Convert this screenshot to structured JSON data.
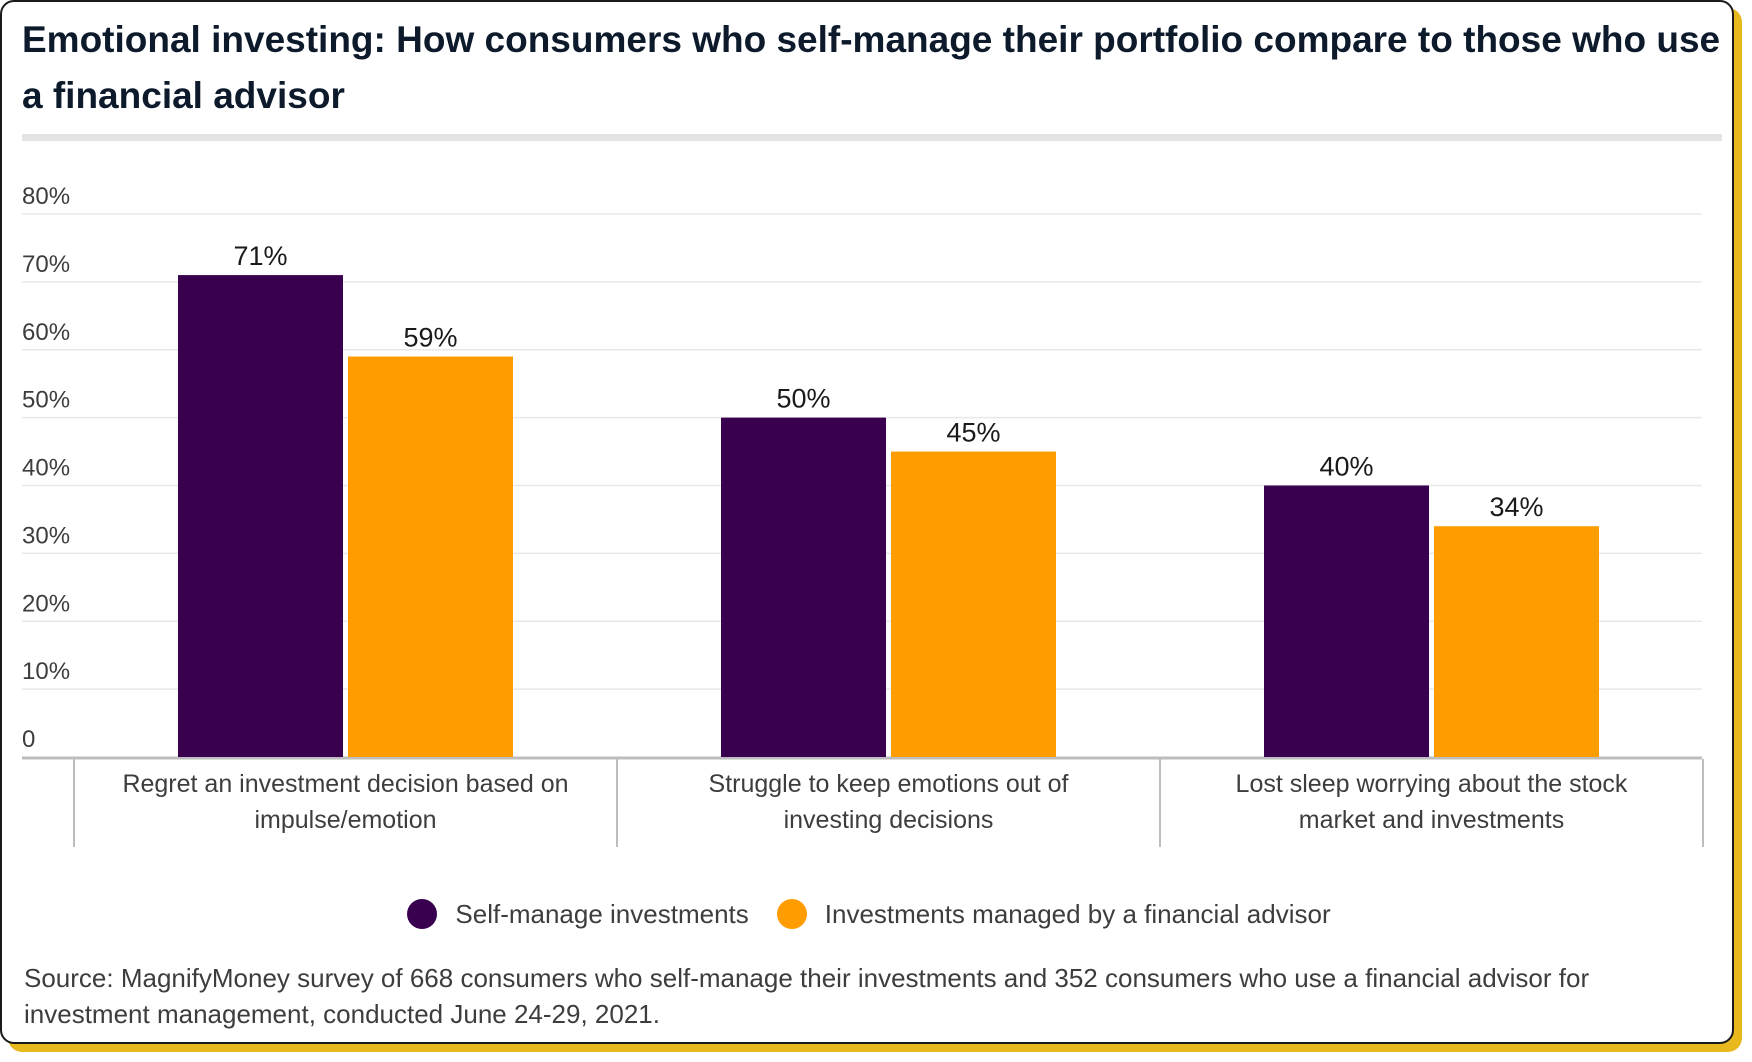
{
  "colors": {
    "self_manage": "#3a0050",
    "advisor": "#ff9c00",
    "grid": "#e8e8e8",
    "axis": "#bdbdbd",
    "text": "#3d3d3d",
    "label": "#1a1a1a"
  },
  "chart_data": {
    "type": "bar",
    "title": "Emotional investing: How consumers who self-manage their portfolio compare to those who use a financial advisor",
    "categories": [
      "Regret an investment decision based on impulse/emotion",
      "Struggle to keep emotions out of investing decisions",
      "Lost sleep worrying about the stock market and investments"
    ],
    "series": [
      {
        "name": "Self-manage investments",
        "values": [
          71,
          50,
          40
        ],
        "labels": [
          "71%",
          "50%",
          "40%"
        ]
      },
      {
        "name": "Investments managed by a financial advisor",
        "values": [
          59,
          45,
          34
        ],
        "labels": [
          "59%",
          "45%",
          "34%"
        ]
      }
    ],
    "ylim": [
      0,
      80
    ],
    "yticks": [
      0,
      10,
      20,
      30,
      40,
      50,
      60,
      70,
      80
    ],
    "ytick_labels": [
      "0",
      "10%",
      "20%",
      "30%",
      "40%",
      "50%",
      "60%",
      "70%",
      "80%"
    ],
    "grid": true,
    "legend_position": "bottom"
  },
  "source": "Source: MagnifyMoney survey of 668 consumers who self-manage their investments and 352 consumers who use a financial advisor for investment management, conducted June 24-29, 2021."
}
